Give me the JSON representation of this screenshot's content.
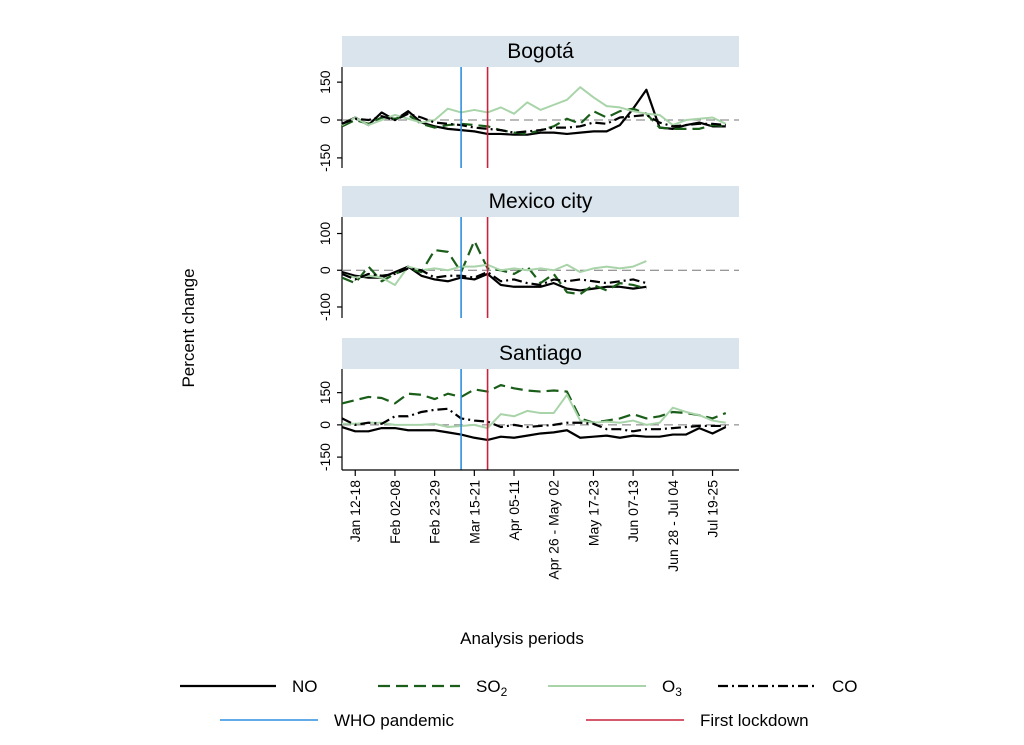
{
  "chart_data": {
    "type": "line",
    "ylabel": "Percent change",
    "xlabel": "Analysis periods",
    "x_tick_labels": [
      "Jan 12-18",
      "Feb 02-08",
      "Feb 23-29",
      "Mar 15-21",
      "Apr 05-11",
      "Apr 26 - May 02",
      "May 17-23",
      "Jun 07-13",
      "Jun 28 - Jul 04",
      "Jul 19-25"
    ],
    "x_tick_positions": [
      1,
      4,
      7,
      10,
      13,
      16,
      19,
      22,
      25,
      28
    ],
    "xlim": [
      0,
      30
    ],
    "markers": [
      {
        "name": "WHO pandemic",
        "x": 9,
        "color": "#2f8fe0"
      },
      {
        "name": "First lockdown",
        "x": 11,
        "color": "#c8233c"
      }
    ],
    "grid": false,
    "legend_position": "bottom",
    "series_styles": [
      {
        "key": "NO",
        "name": "NO",
        "name_sub": "",
        "color": "#000000",
        "dash": ""
      },
      {
        "key": "SO2",
        "name": "SO",
        "name_sub": "2",
        "color": "#1a5e1a",
        "dash": "12,6"
      },
      {
        "key": "O3",
        "name": "O",
        "name_sub": "3",
        "color": "#a9d4a9",
        "dash": ""
      },
      {
        "key": "CO",
        "name": "CO",
        "name_sub": "",
        "color": "#000000",
        "dash": "10,4,2,4"
      }
    ],
    "panels": [
      {
        "title": "Bogotá",
        "ylim": [
          -190,
          210
        ],
        "yticks": [
          150,
          0,
          -150
        ],
        "ytick_labels": [
          "150",
          "0",
          "-150"
        ],
        "series": {
          "NO": [
            -15,
            10,
            -20,
            30,
            0,
            35,
            -10,
            -25,
            -35,
            -40,
            -45,
            -55,
            -55,
            -58,
            -58,
            -50,
            -50,
            -55,
            -50,
            -45,
            -45,
            -20,
            45,
            120,
            -30,
            -35,
            -20,
            -10,
            -25,
            -25
          ],
          "SO2": [
            -25,
            0,
            -15,
            10,
            5,
            20,
            -15,
            -30,
            -20,
            -15,
            -20,
            -25,
            -40,
            -50,
            -55,
            -40,
            -25,
            5,
            -15,
            35,
            10,
            35,
            45,
            25,
            -30,
            -35,
            -35,
            -35,
            -20,
            -25
          ],
          "O3": [
            -20,
            10,
            -20,
            0,
            20,
            5,
            -10,
            0,
            45,
            30,
            40,
            30,
            50,
            25,
            70,
            40,
            60,
            80,
            130,
            90,
            55,
            50,
            35,
            25,
            20,
            -20,
            0,
            5,
            10,
            -15
          ],
          "CO": [
            -15,
            5,
            0,
            15,
            0,
            25,
            10,
            -10,
            -15,
            -20,
            -30,
            -35,
            -40,
            -50,
            -45,
            -40,
            -30,
            -30,
            -25,
            -10,
            -15,
            10,
            15,
            20,
            -10,
            -25,
            -20,
            -15,
            -15,
            -20
          ]
        }
      },
      {
        "title": "Mexico city",
        "ylim": [
          -130,
          145
        ],
        "yticks": [
          100,
          0,
          -100
        ],
        "ytick_labels": [
          "100",
          "0",
          "-100"
        ],
        "series": {
          "NO": [
            -5,
            -15,
            -20,
            -20,
            -5,
            10,
            -15,
            -25,
            -30,
            -20,
            -25,
            -10,
            -40,
            -45,
            -45,
            -45,
            -35,
            -50,
            -55,
            -50,
            -45,
            -45,
            -50,
            -45
          ],
          "SO2": [
            -20,
            -35,
            10,
            -30,
            -10,
            5,
            -5,
            55,
            50,
            -5,
            80,
            5,
            0,
            -10,
            10,
            -35,
            -10,
            -60,
            -65,
            -40,
            -55,
            -35,
            -40,
            -50
          ],
          "O3": [
            -10,
            -20,
            -15,
            -20,
            -40,
            10,
            0,
            5,
            0,
            10,
            10,
            15,
            0,
            5,
            0,
            5,
            0,
            15,
            -5,
            5,
            10,
            5,
            10,
            25
          ],
          "CO": [
            -10,
            -25,
            -10,
            -15,
            -10,
            5,
            0,
            -20,
            -15,
            -15,
            -20,
            -5,
            -30,
            -25,
            -35,
            -40,
            -25,
            -30,
            -25,
            -30,
            -35,
            -30,
            -25,
            -35
          ]
        }
      },
      {
        "title": "Santiago",
        "ylim": [
          -210,
          260
        ],
        "yticks": [
          150,
          0,
          -150
        ],
        "ytick_labels": [
          "150",
          "0",
          "-150"
        ],
        "series": {
          "NO": [
            -10,
            -30,
            -30,
            -15,
            -15,
            -25,
            -25,
            -25,
            -35,
            -45,
            -60,
            -70,
            -55,
            -60,
            -50,
            -40,
            -35,
            -25,
            -60,
            -55,
            -50,
            -60,
            -50,
            -55,
            -55,
            -45,
            -45,
            -15,
            -40,
            -10
          ],
          "SO2": [
            100,
            115,
            130,
            125,
            100,
            145,
            140,
            120,
            145,
            130,
            165,
            155,
            185,
            170,
            160,
            155,
            160,
            155,
            30,
            10,
            20,
            30,
            50,
            30,
            40,
            60,
            55,
            45,
            30,
            55
          ],
          "O3": [
            5,
            5,
            10,
            10,
            0,
            0,
            0,
            5,
            -10,
            -5,
            0,
            -15,
            50,
            40,
            65,
            55,
            55,
            140,
            20,
            10,
            15,
            10,
            20,
            0,
            10,
            80,
            60,
            45,
            20,
            10
          ],
          "CO": [
            30,
            0,
            10,
            5,
            40,
            40,
            60,
            70,
            75,
            30,
            20,
            15,
            -10,
            0,
            -10,
            -5,
            0,
            10,
            10,
            5,
            -20,
            -20,
            -30,
            -20,
            -20,
            -15,
            -10,
            -5,
            -5,
            -5
          ]
        }
      }
    ]
  }
}
